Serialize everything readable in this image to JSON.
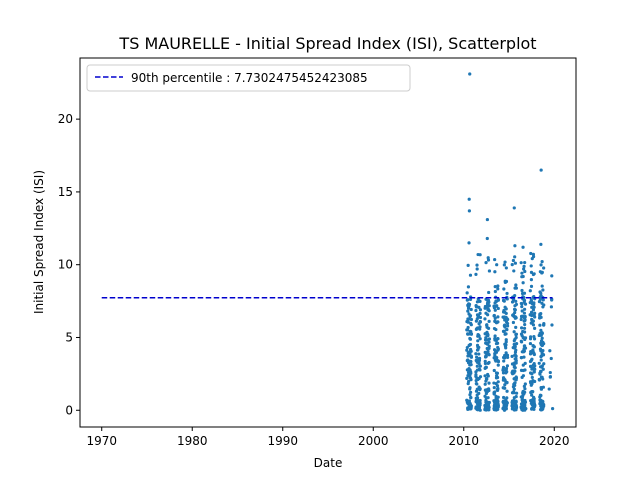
{
  "chart_data": {
    "type": "scatter",
    "title": "TS MAURELLE - Initial Spread Index (ISI), Scatterplot",
    "xlabel": "Date",
    "ylabel": "Initial Spread Index (ISI)",
    "xlim": [
      1967.6,
      2022.4
    ],
    "ylim": [
      -1.15,
      24.2
    ],
    "x_ticks": [
      1970,
      1980,
      1990,
      2000,
      2010,
      2020
    ],
    "y_ticks": [
      0,
      5,
      10,
      15,
      20
    ],
    "grid": false,
    "legend_position": "top-left",
    "series_color": "#1f77b4",
    "percentile_color": "#0000cd",
    "percentile_line": {
      "label": "90th percentile : 7.7302475452423085",
      "value": 7.7302475452423085,
      "x_range": [
        1970,
        2019.8
      ]
    },
    "season_years": [
      2010,
      2011,
      2012,
      2013,
      2014,
      2015,
      2016,
      2017,
      2018,
      2019
    ],
    "season_start": 0.33,
    "season_end": 0.85,
    "notable_points": [
      {
        "x": 2010.66,
        "y": 23.1
      },
      {
        "x": 2018.55,
        "y": 16.5
      },
      {
        "x": 2010.6,
        "y": 14.5
      },
      {
        "x": 2010.62,
        "y": 13.7
      },
      {
        "x": 2012.61,
        "y": 13.1
      },
      {
        "x": 2015.58,
        "y": 13.9
      },
      {
        "x": 2012.6,
        "y": 11.8
      },
      {
        "x": 2016.55,
        "y": 11.2
      },
      {
        "x": 2018.52,
        "y": 11.4
      },
      {
        "x": 2015.65,
        "y": 11.3
      },
      {
        "x": 2010.58,
        "y": 11.5
      }
    ]
  }
}
